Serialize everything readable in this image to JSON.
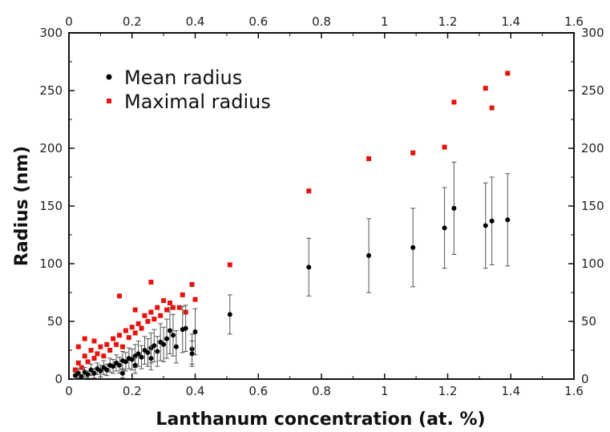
{
  "colors": {
    "mean": "#000000",
    "max": "#e8120c",
    "axis": "#111111",
    "errorbar": "#555555"
  },
  "chart_data": {
    "type": "scatter",
    "xlabel": "Lanthanum concentration (at. %)",
    "ylabel": "Radius (nm)",
    "xlim": [
      0,
      1.6
    ],
    "ylim": [
      0,
      300
    ],
    "x_ticks": [
      "0",
      "0.2",
      "0.4",
      "0.6",
      "0.8",
      "1",
      "1.2",
      "1.4",
      "1.6"
    ],
    "x_tick_values": [
      0,
      0.2,
      0.4,
      0.6,
      0.8,
      1.0,
      1.2,
      1.4,
      1.6
    ],
    "y_ticks": [
      "0",
      "50",
      "100",
      "150",
      "200",
      "250",
      "300"
    ],
    "y_tick_values": [
      0,
      50,
      100,
      150,
      200,
      250,
      300
    ],
    "top_axis_mirrored": true,
    "right_axis_mirrored": true,
    "grid": false,
    "legend_position": "top-left",
    "series": [
      {
        "name": "Mean radius",
        "marker": "circle",
        "points": [
          {
            "x": 0.02,
            "y": 3,
            "err": 3
          },
          {
            "x": 0.03,
            "y": 5,
            "err": 4
          },
          {
            "x": 0.04,
            "y": 2,
            "err": 2
          },
          {
            "x": 0.05,
            "y": 6,
            "err": 4
          },
          {
            "x": 0.06,
            "y": 4,
            "err": 3
          },
          {
            "x": 0.07,
            "y": 8,
            "err": 5
          },
          {
            "x": 0.08,
            "y": 5,
            "err": 4
          },
          {
            "x": 0.09,
            "y": 9,
            "err": 5
          },
          {
            "x": 0.1,
            "y": 7,
            "err": 5
          },
          {
            "x": 0.11,
            "y": 10,
            "err": 6
          },
          {
            "x": 0.12,
            "y": 8,
            "err": 5
          },
          {
            "x": 0.13,
            "y": 12,
            "err": 6
          },
          {
            "x": 0.14,
            "y": 11,
            "err": 6
          },
          {
            "x": 0.15,
            "y": 14,
            "err": 7
          },
          {
            "x": 0.16,
            "y": 12,
            "err": 7
          },
          {
            "x": 0.17,
            "y": 16,
            "err": 8
          },
          {
            "x": 0.17,
            "y": 5,
            "err": 4
          },
          {
            "x": 0.18,
            "y": 15,
            "err": 8
          },
          {
            "x": 0.19,
            "y": 18,
            "err": 9
          },
          {
            "x": 0.2,
            "y": 17,
            "err": 9
          },
          {
            "x": 0.21,
            "y": 20,
            "err": 10
          },
          {
            "x": 0.21,
            "y": 12,
            "err": 7
          },
          {
            "x": 0.22,
            "y": 22,
            "err": 11
          },
          {
            "x": 0.23,
            "y": 19,
            "err": 10
          },
          {
            "x": 0.24,
            "y": 25,
            "err": 12
          },
          {
            "x": 0.25,
            "y": 23,
            "err": 12
          },
          {
            "x": 0.26,
            "y": 27,
            "err": 13
          },
          {
            "x": 0.26,
            "y": 18,
            "err": 10
          },
          {
            "x": 0.27,
            "y": 29,
            "err": 14
          },
          {
            "x": 0.28,
            "y": 24,
            "err": 13
          },
          {
            "x": 0.29,
            "y": 32,
            "err": 16
          },
          {
            "x": 0.3,
            "y": 30,
            "err": 15
          },
          {
            "x": 0.31,
            "y": 35,
            "err": 17
          },
          {
            "x": 0.32,
            "y": 42,
            "err": 20
          },
          {
            "x": 0.33,
            "y": 38,
            "err": 18
          },
          {
            "x": 0.34,
            "y": 28,
            "err": 14
          },
          {
            "x": 0.36,
            "y": 43,
            "err": 20
          },
          {
            "x": 0.37,
            "y": 44,
            "err": 20
          },
          {
            "x": 0.39,
            "y": 26,
            "err": 13
          },
          {
            "x": 0.39,
            "y": 22,
            "err": 11
          },
          {
            "x": 0.4,
            "y": 41,
            "err": 20
          },
          {
            "x": 0.51,
            "y": 56,
            "err": 17
          },
          {
            "x": 0.76,
            "y": 97,
            "err": 25
          },
          {
            "x": 0.95,
            "y": 107,
            "err": 32
          },
          {
            "x": 1.09,
            "y": 114,
            "err": 34
          },
          {
            "x": 1.19,
            "y": 131,
            "err": 35
          },
          {
            "x": 1.22,
            "y": 148,
            "err": 40
          },
          {
            "x": 1.32,
            "y": 133,
            "err": 37
          },
          {
            "x": 1.34,
            "y": 137,
            "err": 38
          },
          {
            "x": 1.39,
            "y": 138,
            "err": 40
          }
        ]
      },
      {
        "name": "Maximal radius",
        "marker": "square",
        "points": [
          {
            "x": 0.02,
            "y": 8
          },
          {
            "x": 0.03,
            "y": 14
          },
          {
            "x": 0.03,
            "y": 28
          },
          {
            "x": 0.04,
            "y": 10
          },
          {
            "x": 0.05,
            "y": 20
          },
          {
            "x": 0.05,
            "y": 35
          },
          {
            "x": 0.06,
            "y": 15
          },
          {
            "x": 0.07,
            "y": 25
          },
          {
            "x": 0.08,
            "y": 18
          },
          {
            "x": 0.08,
            "y": 33
          },
          {
            "x": 0.09,
            "y": 22
          },
          {
            "x": 0.1,
            "y": 28
          },
          {
            "x": 0.11,
            "y": 20
          },
          {
            "x": 0.12,
            "y": 30
          },
          {
            "x": 0.13,
            "y": 25
          },
          {
            "x": 0.14,
            "y": 35
          },
          {
            "x": 0.15,
            "y": 30
          },
          {
            "x": 0.16,
            "y": 72
          },
          {
            "x": 0.16,
            "y": 38
          },
          {
            "x": 0.17,
            "y": 28
          },
          {
            "x": 0.18,
            "y": 42
          },
          {
            "x": 0.19,
            "y": 36
          },
          {
            "x": 0.2,
            "y": 45
          },
          {
            "x": 0.21,
            "y": 40
          },
          {
            "x": 0.21,
            "y": 60
          },
          {
            "x": 0.22,
            "y": 48
          },
          {
            "x": 0.23,
            "y": 44
          },
          {
            "x": 0.24,
            "y": 55
          },
          {
            "x": 0.25,
            "y": 50
          },
          {
            "x": 0.26,
            "y": 84
          },
          {
            "x": 0.26,
            "y": 58
          },
          {
            "x": 0.27,
            "y": 52
          },
          {
            "x": 0.28,
            "y": 62
          },
          {
            "x": 0.29,
            "y": 55
          },
          {
            "x": 0.3,
            "y": 68
          },
          {
            "x": 0.31,
            "y": 60
          },
          {
            "x": 0.32,
            "y": 66
          },
          {
            "x": 0.33,
            "y": 62
          },
          {
            "x": 0.35,
            "y": 62
          },
          {
            "x": 0.36,
            "y": 73
          },
          {
            "x": 0.37,
            "y": 58
          },
          {
            "x": 0.39,
            "y": 82
          },
          {
            "x": 0.4,
            "y": 69
          },
          {
            "x": 0.51,
            "y": 99
          },
          {
            "x": 0.76,
            "y": 163
          },
          {
            "x": 0.95,
            "y": 191
          },
          {
            "x": 1.09,
            "y": 196
          },
          {
            "x": 1.19,
            "y": 201
          },
          {
            "x": 1.22,
            "y": 240
          },
          {
            "x": 1.32,
            "y": 252
          },
          {
            "x": 1.34,
            "y": 235
          },
          {
            "x": 1.39,
            "y": 265
          }
        ]
      }
    ]
  }
}
